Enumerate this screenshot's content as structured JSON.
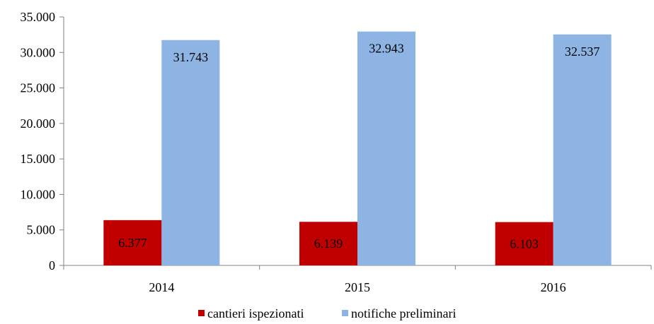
{
  "chart_data": {
    "type": "bar",
    "categories": [
      "2014",
      "2015",
      "2016"
    ],
    "series": [
      {
        "name": "cantieri ispezionati",
        "values": [
          6377,
          6139,
          6103
        ],
        "labels": [
          "6.377",
          "6.139",
          "6.103"
        ],
        "color": "#c00000"
      },
      {
        "name": "notifiche preliminari",
        "values": [
          31743,
          32943,
          32537
        ],
        "labels": [
          "31.743",
          "32.943",
          "32.537"
        ],
        "color": "#8db4e2"
      }
    ],
    "ylim": [
      0,
      35000
    ],
    "yticks": [
      0,
      5000,
      10000,
      15000,
      20000,
      25000,
      30000,
      35000
    ],
    "ytick_labels": [
      "0",
      "5.000",
      "10.000",
      "15.000",
      "20.000",
      "25.000",
      "30.000",
      "35.000"
    ],
    "grid": false,
    "legend_position": "bottom",
    "axis_color": "#808080"
  }
}
